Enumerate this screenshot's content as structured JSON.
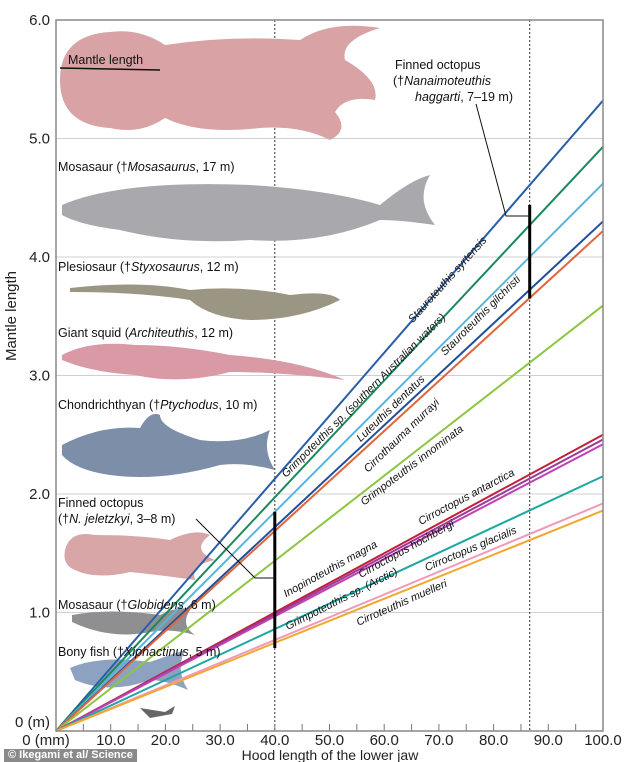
{
  "chart_data": {
    "type": "line",
    "xlabel": "Hood length of the lower jaw",
    "ylabel": "Mantle length",
    "xlim": [
      0,
      100
    ],
    "ylim": [
      0,
      6
    ],
    "x_ticks": [
      "0 (mm)",
      "10.0",
      "20.0",
      "30.0",
      "40.0",
      "50.0",
      "60.0",
      "70.0",
      "80.0",
      "90.0",
      "100.0"
    ],
    "y_ticks": [
      "0 (m)",
      "1.0",
      "2.0",
      "3.0",
      "4.0",
      "5.0",
      "6.0"
    ],
    "grid": "horizontal",
    "series": [
      {
        "name": "Stauroteuthis syrtensis",
        "color": "#2a5ea8",
        "x": [
          0,
          100
        ],
        "y": [
          0,
          5.32
        ]
      },
      {
        "name": "Grimpoteuthis sp. (southern Australian waters)",
        "color": "#1a8a5a",
        "x": [
          0,
          100
        ],
        "y": [
          0,
          4.93
        ]
      },
      {
        "name": "Stauroteuthis gilchristi",
        "color": "#5ab4e0",
        "x": [
          0,
          100
        ],
        "y": [
          0,
          4.62
        ]
      },
      {
        "name": "Luteuthis dentatus",
        "color": "#1f4e9a",
        "x": [
          0,
          100
        ],
        "y": [
          0,
          4.3
        ]
      },
      {
        "name": "Cirrothauma murrayi",
        "color": "#e0663a",
        "x": [
          0,
          100
        ],
        "y": [
          0,
          4.22
        ]
      },
      {
        "name": "Grimpoteuthis innominata",
        "color": "#8cc63f",
        "x": [
          0,
          100
        ],
        "y": [
          0,
          3.59
        ]
      },
      {
        "name": "Cirroctopus antarctica",
        "color": "#c0203a",
        "x": [
          0,
          100
        ],
        "y": [
          0,
          2.5
        ]
      },
      {
        "name": "Inopinoteuthis magna",
        "color": "#9a3a9a",
        "x": [
          0,
          100
        ],
        "y": [
          0,
          2.46
        ]
      },
      {
        "name": "Cirroctopus hochbergi",
        "color": "#c040b0",
        "x": [
          0,
          100
        ],
        "y": [
          0,
          2.42
        ]
      },
      {
        "name": "Grimpoteuthis sp. (Arctic)",
        "color": "#1aa8a0",
        "x": [
          0,
          100
        ],
        "y": [
          0,
          2.15
        ]
      },
      {
        "name": "Cirroctopus glacialis",
        "color": "#f09ab8",
        "x": [
          0,
          100
        ],
        "y": [
          0,
          1.92
        ]
      },
      {
        "name": "Cirroteuthis muelleri",
        "color": "#f0a830",
        "x": [
          0,
          100
        ],
        "y": [
          0,
          1.86
        ]
      }
    ],
    "reference_lines": [
      {
        "x": 40,
        "style": "dashed"
      },
      {
        "x": 86.6,
        "style": "dashed"
      }
    ],
    "estimate_ranges": [
      {
        "x": 40,
        "y": [
          0.7,
          1.85
        ]
      },
      {
        "x": 86.6,
        "y": [
          3.65,
          4.44
        ]
      }
    ],
    "annotations": {
      "mantle_length": "Mantle length",
      "nanaimo": {
        "line1": "Finned octopus",
        "line2_pre": "(†",
        "line2_it": "Nanaimoteuthis",
        "line3_it": "haggarti",
        "line3_post": ", 7–19 m)"
      },
      "animals": [
        {
          "pre": "Mosasaur (†",
          "it": "Mosasaurus",
          "post": ", 17 m)"
        },
        {
          "pre": "Plesiosaur (†",
          "it": "Styxosaurus",
          "post": ", 12 m)"
        },
        {
          "pre": "Giant squid (",
          "it": "Architeuthis",
          "post": ", 12 m)"
        },
        {
          "pre": "Chondrichthyan (†",
          "it": "Ptychodus",
          "post": ", 10 m)"
        },
        {
          "pre": "Finned octopus",
          "pre2": "(†",
          "it": "N. jeletzkyi",
          "post": ", 3–8 m)"
        },
        {
          "pre": "Mosasaur (†",
          "it": "Globidens",
          "post": ", 6 m)"
        },
        {
          "pre": "Bony fish (†",
          "it": "Xiphactinus",
          "post": ", 5 m)"
        }
      ]
    }
  },
  "credit": "© Ikegami et al/ Science"
}
